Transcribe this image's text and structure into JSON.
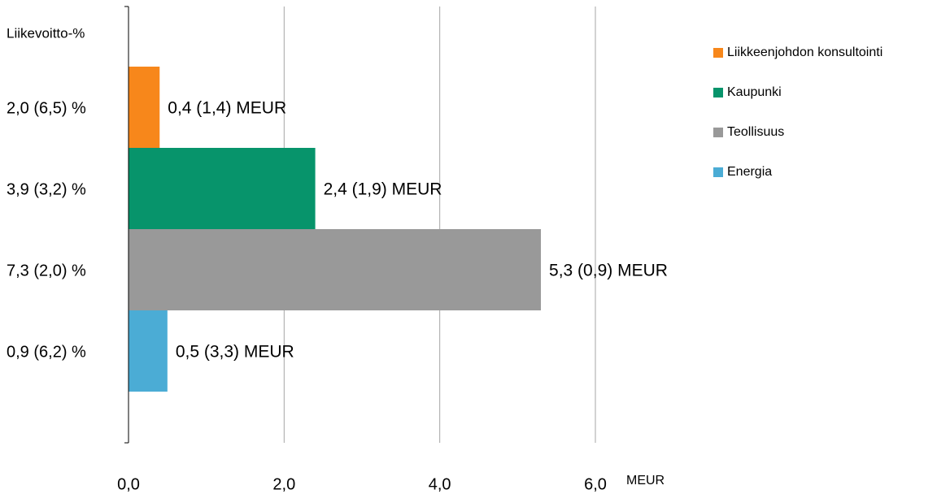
{
  "chart_data": {
    "type": "bar",
    "orientation": "horizontal",
    "y_label": "Liikevoitto-%",
    "x_label": "MEUR",
    "categories": [
      "2,0 (6,5) %",
      "3,9 (3,2) %",
      "7,3 (2,0) %",
      "0,9 (6,2) %"
    ],
    "values": [
      0.4,
      2.4,
      5.3,
      0.5
    ],
    "value_labels": [
      "0,4 (1,4) MEUR",
      "2,4 (1,9) MEUR",
      "5,3 (0,9) MEUR",
      "0,5 (3,3) MEUR"
    ],
    "colors": [
      "#f7871b",
      "#07946b",
      "#999999",
      "#4bacd5"
    ],
    "legend": [
      "Liikkeenjohdon konsultointi",
      "Kaupunki",
      "Teollisuus",
      "Energia"
    ],
    "xlim": [
      0,
      6
    ],
    "xticks": [
      {
        "value": 0,
        "label": "0,0"
      },
      {
        "value": 2,
        "label": "2,0"
      },
      {
        "value": 4,
        "label": "4,0"
      },
      {
        "value": 6,
        "label": "6,0"
      }
    ],
    "grid": true
  }
}
